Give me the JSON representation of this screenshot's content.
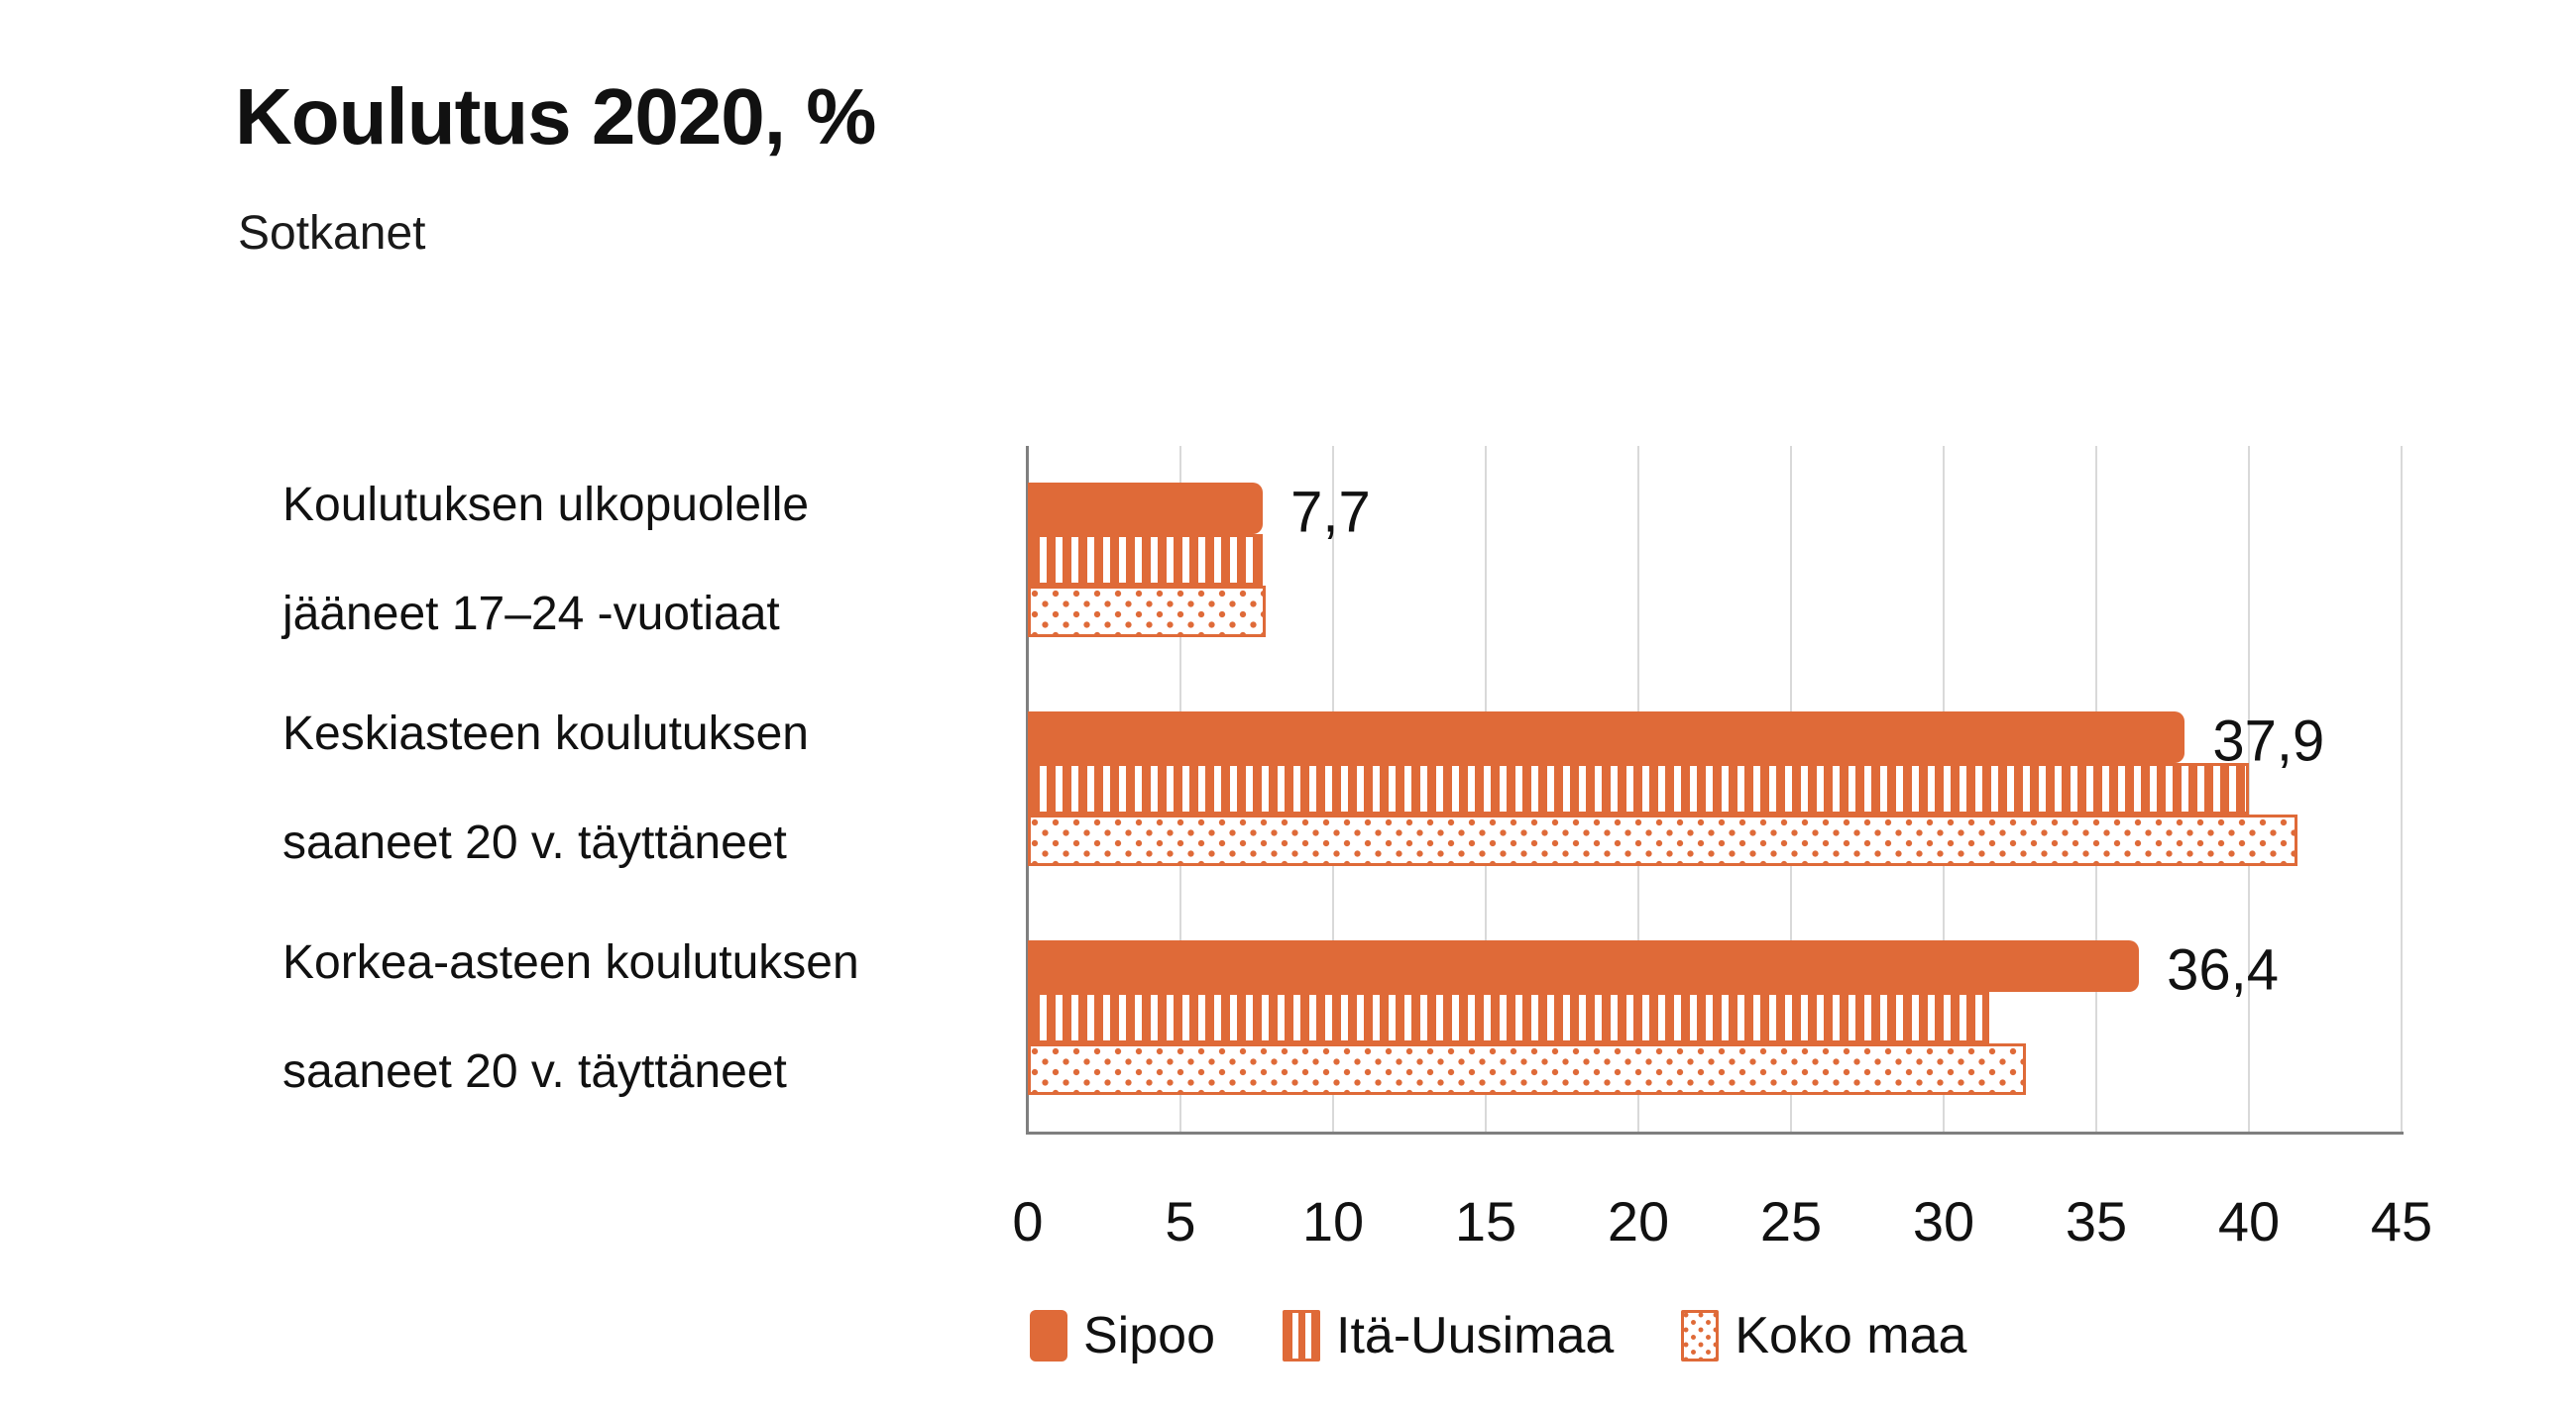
{
  "title": "Koulutus 2020, %",
  "subtitle": "Sotkanet",
  "chart_data": {
    "type": "bar",
    "orientation": "horizontal",
    "title": "Koulutus 2020, %",
    "subtitle": "Sotkanet",
    "categories": [
      "Koulutuksen ulkopuolelle\njääneet 17–24 -vuotiaat",
      "Keskiasteen koulutuksen\nsaaneet 20 v. täyttäneet",
      "Korkea-asteen koulutuksen\nsaaneet 20 v. täyttäneet"
    ],
    "series": [
      {
        "name": "Sipoo",
        "pattern": "solid",
        "values": [
          7.7,
          37.9,
          36.4
        ],
        "show_labels": true,
        "labels": [
          "7,7",
          "37,9",
          "36,4"
        ]
      },
      {
        "name": "Itä-Uusimaa",
        "pattern": "striped",
        "values": [
          7.7,
          40.0,
          31.5
        ],
        "show_labels": false
      },
      {
        "name": "Koko maa",
        "pattern": "dotted",
        "values": [
          7.8,
          41.6,
          32.7
        ],
        "show_labels": false
      }
    ],
    "x_axis": {
      "min": 0,
      "max": 45,
      "tick_step": 5,
      "tick_labels": [
        "0",
        "5",
        "10",
        "15",
        "20",
        "25",
        "30",
        "35",
        "40",
        "45"
      ]
    },
    "legend": {
      "position": "bottom",
      "entries": [
        {
          "label": "Sipoo",
          "pattern": "solid"
        },
        {
          "label": "Itä-Uusimaa",
          "pattern": "striped"
        },
        {
          "label": "Koko maa",
          "pattern": "dotted"
        }
      ]
    },
    "grid": "vertical-lines-on",
    "colors": {
      "accent_orange": "#DF6A38",
      "gridline": "#D9D9D9",
      "axis_line": "#7F7F7F",
      "text": "#111111",
      "background": "#FFFFFF"
    }
  }
}
